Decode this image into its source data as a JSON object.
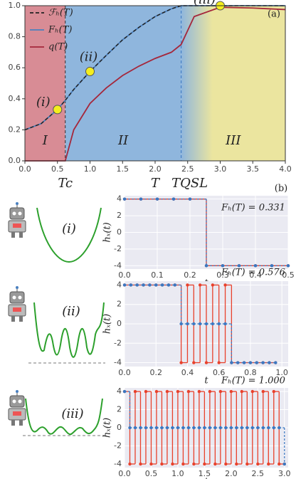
{
  "chart_data": [
    {
      "type": "line",
      "panel_label": "(a)",
      "x_label": "T",
      "x": [
        0,
        0.25,
        0.5,
        0.62,
        0.75,
        1,
        1.25,
        1.5,
        1.75,
        2,
        2.25,
        2.4,
        2.6,
        3,
        3.5,
        4
      ],
      "series": [
        {
          "name": "ℱₕ(T)",
          "color": "#222222",
          "dash": true,
          "values": [
            0.2,
            0.24,
            0.331,
            0.39,
            0.46,
            0.576,
            0.68,
            0.78,
            0.86,
            0.93,
            0.98,
            1.0,
            1.0,
            1.0,
            1.0,
            1.0
          ]
        },
        {
          "name": "Fₕ(T)",
          "color": "#4a80c0",
          "dash": false,
          "values": [
            0.2,
            0.24,
            0.331,
            0.39,
            0.46,
            0.576,
            0.68,
            0.78,
            0.86,
            0.93,
            0.98,
            1.0,
            1.0,
            1.0,
            1.0,
            1.0
          ]
        },
        {
          "name": "q(T)",
          "color": "#a5273b",
          "dash": false,
          "values": [
            0,
            0,
            0,
            0,
            0.2,
            0.37,
            0.47,
            0.55,
            0.61,
            0.66,
            0.7,
            0.75,
            0.93,
            0.99,
            0.985,
            0.975
          ]
        }
      ],
      "regions": [
        {
          "label": "I",
          "from": 0,
          "to": 0.62,
          "color": "#d88c95"
        },
        {
          "label": "II",
          "from": 0.62,
          "to": 2.4,
          "color": "#8fb6dd"
        },
        {
          "label": "III",
          "from": 2.4,
          "to": 4,
          "color": "#ebe59f"
        }
      ],
      "annotations": [
        {
          "text": "Tc",
          "x": 0.62
        },
        {
          "text": "TQSL",
          "x": 2.4
        }
      ],
      "points": {
        "x": [
          0.5,
          1.0,
          3.0
        ],
        "values": [
          0.331,
          0.576,
          1.0
        ],
        "labels": [
          "(i)",
          "(ii)",
          "(iii)"
        ],
        "color": "#f4ee1e"
      },
      "xlim": [
        0,
        4
      ],
      "ylim": [
        0,
        1
      ],
      "xticks": [
        {
          "value": 0,
          "label": "0.0"
        },
        0.5,
        {
          "value": 1,
          "label": "1.0"
        },
        1.5,
        {
          "value": 2,
          "label": "2.0"
        },
        2.5,
        {
          "value": 3,
          "label": "3.0"
        },
        3.5,
        {
          "value": 4,
          "label": "4.0"
        }
      ],
      "yticks": [
        {
          "value": 0,
          "label": "0.0"
        },
        0.2,
        0.4,
        0.6,
        0.8,
        {
          "value": 1,
          "label": "1.0"
        }
      ]
    },
    {
      "type": "step",
      "panel_label": "(b)",
      "annotation": "Fₕ(T) = 0.331",
      "x_label": "t",
      "y_label": "hₓ(t)",
      "x": [
        0,
        0.05,
        0.1,
        0.15,
        0.2,
        0.25,
        0.3,
        0.35,
        0.4,
        0.45,
        0.5
      ],
      "series": [
        {
          "color": "#e8412c",
          "dash": false,
          "values": [
            4,
            4,
            4,
            4,
            4,
            -4,
            -4,
            -4,
            -4,
            -4,
            -4
          ]
        },
        {
          "color": "#3a78c2",
          "dash": true,
          "values": [
            4,
            4,
            4,
            4,
            4,
            -4,
            -4,
            -4,
            -4,
            -4,
            -4
          ]
        }
      ],
      "xlim": [
        0,
        0.5
      ],
      "ylim": [
        -4.4,
        4.4
      ],
      "xticks": [
        {
          "value": 0,
          "label": "0.0"
        },
        0.1,
        0.2,
        0.3,
        0.4,
        0.5
      ],
      "yticks": [
        -4,
        -2,
        0,
        2,
        4
      ],
      "background": "#eaeaf2"
    },
    {
      "type": "step",
      "annotation": "Fₕ(T) = 0.576",
      "x_label": "t",
      "y_label": "hₓ(t)",
      "x": [
        0,
        0.04,
        0.08,
        0.12,
        0.16,
        0.2,
        0.24,
        0.28,
        0.32,
        0.36,
        0.4,
        0.44,
        0.48,
        0.52,
        0.56,
        0.6,
        0.64,
        0.68,
        0.72,
        0.76,
        0.8,
        0.84,
        0.88,
        0.92,
        0.96
      ],
      "series": [
        {
          "color": "#e8412c",
          "dash": false,
          "values": [
            4,
            4,
            4,
            4,
            4,
            4,
            4,
            4,
            4,
            -4,
            4,
            -4,
            4,
            -4,
            4,
            -4,
            4,
            -4,
            -4,
            -4,
            -4,
            -4,
            -4,
            -4,
            -4
          ]
        },
        {
          "color": "#3a78c2",
          "dash": true,
          "values": [
            4,
            4,
            4,
            4,
            4,
            4,
            4,
            4,
            4,
            0,
            0,
            0,
            0,
            0,
            0,
            0,
            0,
            -4,
            -4,
            -4,
            -4,
            -4,
            -4,
            -4,
            -4
          ]
        }
      ],
      "xlim": [
        0,
        1.04
      ],
      "ylim": [
        -4.4,
        4.4
      ],
      "xticks": [
        {
          "value": 0,
          "label": "0.0"
        },
        0.2,
        0.4,
        0.6,
        0.8,
        {
          "value": 1,
          "label": "1.0"
        }
      ],
      "yticks": [
        -4,
        -2,
        0,
        2,
        4
      ],
      "background": "#eaeaf2"
    },
    {
      "type": "step",
      "annotation": "Fₕ(T) = 1.000",
      "x_label": "t",
      "y_label": "hₓ(t)",
      "x": [
        0,
        0.1,
        0.2,
        0.3,
        0.4,
        0.5,
        0.6,
        0.7,
        0.8,
        0.9,
        1.0,
        1.1,
        1.2,
        1.3,
        1.4,
        1.5,
        1.6,
        1.7,
        1.8,
        1.9,
        2.0,
        2.1,
        2.2,
        2.3,
        2.4,
        2.5,
        2.6,
        2.7,
        2.8,
        2.9,
        3.0
      ],
      "series": [
        {
          "color": "#e8412c",
          "dash": false,
          "values": [
            4,
            -4,
            4,
            -4,
            4,
            -4,
            4,
            -4,
            4,
            -4,
            4,
            -4,
            4,
            -4,
            4,
            -4,
            4,
            -4,
            4,
            -4,
            4,
            -4,
            4,
            -4,
            4,
            -4,
            4,
            -4,
            4,
            -4,
            -4
          ]
        },
        {
          "color": "#3a78c2",
          "dash": true,
          "values": [
            4,
            0,
            0,
            0,
            0,
            0,
            0,
            0,
            0,
            0,
            0,
            0,
            0,
            0,
            0,
            0,
            0,
            0,
            0,
            0,
            0,
            0,
            0,
            0,
            0,
            0,
            0,
            0,
            0,
            0,
            -4
          ]
        }
      ],
      "xlim": [
        0,
        3.07
      ],
      "ylim": [
        -4.4,
        4.4
      ],
      "xticks": [
        {
          "value": 0,
          "label": "0.0"
        },
        0.5,
        {
          "value": 1,
          "label": "1.0"
        },
        1.5,
        {
          "value": 2,
          "label": "2.0"
        },
        2.5,
        {
          "value": 3,
          "label": "3.0"
        }
      ],
      "yticks": [
        -4,
        -2,
        0,
        2,
        4
      ],
      "background": "#eaeaf2"
    }
  ],
  "illustration_labels": [
    "(i)",
    "(ii)",
    "(iii)"
  ]
}
